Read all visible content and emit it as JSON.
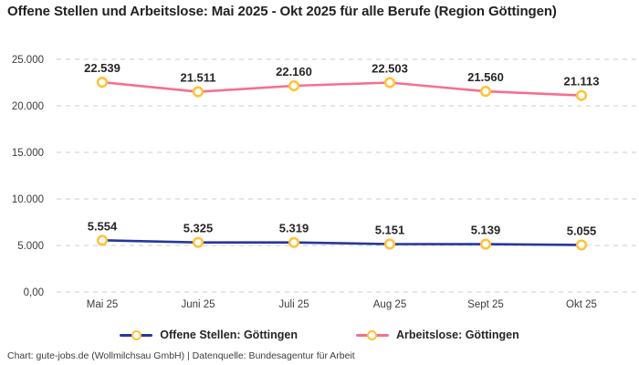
{
  "chart_data": {
    "type": "line",
    "title": "Offene Stellen und Arbeitslose: Mai 2025 - Okt 2025 für alle Berufe (Region Göttingen)",
    "categories": [
      "Mai 25",
      "Juni 25",
      "Juli 25",
      "Aug 25",
      "Sept 25",
      "Okt 25"
    ],
    "series": [
      {
        "name": "Offene Stellen: Göttingen",
        "color": "#26379e",
        "values": [
          5554,
          5325,
          5319,
          5151,
          5139,
          5055
        ],
        "labels": [
          "5.554",
          "5.325",
          "5.319",
          "5.151",
          "5.139",
          "5.055"
        ]
      },
      {
        "name": "Arbeitslose: Göttingen",
        "color": "#f5708f",
        "values": [
          22539,
          21511,
          22160,
          22503,
          21560,
          21113
        ],
        "labels": [
          "22.539",
          "21.511",
          "22.160",
          "22.503",
          "21.560",
          "21.113"
        ]
      }
    ],
    "marker": {
      "fill": "#ffffff",
      "stroke": "#ffc233"
    },
    "y_axis": {
      "min": 0,
      "max": 25000,
      "ticks": [
        {
          "value": 0,
          "label": "0,00"
        },
        {
          "value": 5000,
          "label": "5.000"
        },
        {
          "value": 10000,
          "label": "10.000"
        },
        {
          "value": 15000,
          "label": "15.000"
        },
        {
          "value": 20000,
          "label": "20.000"
        },
        {
          "value": 25000,
          "label": "25.000"
        }
      ]
    },
    "grid": "horizontal dashed",
    "gridline_color": "#cccccc",
    "legend_position": "bottom",
    "footer": "Chart: gute-jobs.de (Wollmilchsau GmbH) | Datenquelle: Bundesagentur für Arbeit"
  }
}
